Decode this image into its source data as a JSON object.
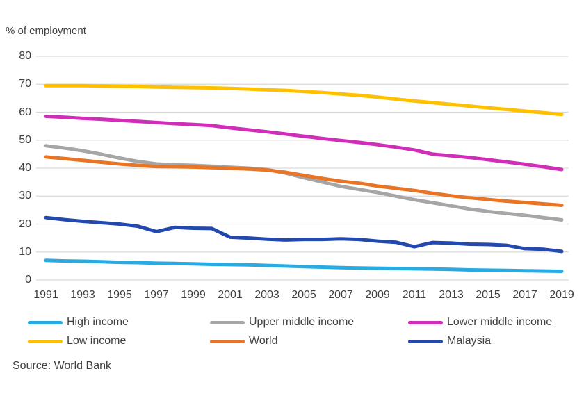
{
  "header": {
    "unit_label": "% of employment"
  },
  "source": {
    "text": "Source: World Bank"
  },
  "colors": {
    "gridline": "#d9d9d9",
    "axis_text": "#404040",
    "high_income": "#29abe2",
    "upper_middle_income": "#a6a6a6",
    "lower_middle_income": "#d02db8",
    "low_income": "#ffc000",
    "world": "#e87425",
    "malaysia": "#2348ae"
  },
  "chart_data": {
    "type": "line",
    "title": "",
    "ylabel": "% of employment",
    "xlabel": "",
    "ylim": [
      0,
      80
    ],
    "grid": true,
    "legend_position": "bottom",
    "yticks": [
      80,
      70,
      60,
      50,
      40,
      30,
      20,
      10,
      0
    ],
    "xticks": [
      1991,
      1993,
      1995,
      1997,
      1999,
      2001,
      2003,
      2005,
      2007,
      2009,
      2011,
      2013,
      2015,
      2017,
      2019
    ],
    "x": [
      1991,
      1992,
      1993,
      1994,
      1995,
      1996,
      1997,
      1998,
      1999,
      2000,
      2001,
      2002,
      2003,
      2004,
      2005,
      2006,
      2007,
      2008,
      2009,
      2010,
      2011,
      2012,
      2013,
      2014,
      2015,
      2016,
      2017,
      2018,
      2019
    ],
    "series": [
      {
        "name": "High income",
        "color": "#29abe2",
        "values": [
          7.0,
          6.8,
          6.7,
          6.5,
          6.3,
          6.2,
          6.0,
          5.9,
          5.8,
          5.6,
          5.5,
          5.4,
          5.2,
          5.0,
          4.8,
          4.6,
          4.4,
          4.3,
          4.2,
          4.1,
          4.0,
          3.9,
          3.8,
          3.6,
          3.5,
          3.4,
          3.3,
          3.2,
          3.1
        ]
      },
      {
        "name": "Upper middle income",
        "color": "#a6a6a6",
        "values": [
          48.0,
          47.2,
          46.2,
          45.0,
          43.6,
          42.4,
          41.5,
          41.2,
          41.0,
          40.7,
          40.3,
          40.0,
          39.5,
          38.2,
          36.6,
          35.0,
          33.5,
          32.4,
          31.3,
          30.0,
          28.7,
          27.6,
          26.5,
          25.4,
          24.5,
          23.8,
          23.1,
          22.3,
          21.5
        ]
      },
      {
        "name": "Lower middle income",
        "color": "#d02db8",
        "values": [
          58.5,
          58.2,
          57.8,
          57.5,
          57.1,
          56.7,
          56.3,
          55.9,
          55.6,
          55.2,
          54.4,
          53.7,
          53.0,
          52.2,
          51.4,
          50.6,
          49.9,
          49.2,
          48.4,
          47.5,
          46.5,
          45.0,
          44.4,
          43.8,
          43.0,
          42.2,
          41.4,
          40.5,
          39.5
        ]
      },
      {
        "name": "Low income",
        "color": "#ffc000",
        "values": [
          69.5,
          69.5,
          69.5,
          69.4,
          69.3,
          69.2,
          69.0,
          68.9,
          68.8,
          68.7,
          68.5,
          68.3,
          68.0,
          67.8,
          67.4,
          67.0,
          66.5,
          66.0,
          65.4,
          64.7,
          64.0,
          63.4,
          62.8,
          62.2,
          61.6,
          61.0,
          60.4,
          59.8,
          59.2
        ]
      },
      {
        "name": "World",
        "color": "#e87425",
        "values": [
          44.0,
          43.4,
          42.8,
          42.1,
          41.5,
          41.0,
          40.6,
          40.5,
          40.4,
          40.2,
          40.0,
          39.7,
          39.3,
          38.5,
          37.4,
          36.3,
          35.3,
          34.6,
          33.6,
          32.8,
          32.0,
          31.0,
          30.1,
          29.4,
          28.8,
          28.2,
          27.7,
          27.2,
          26.7
        ]
      },
      {
        "name": "Malaysia",
        "color": "#2348ae",
        "values": [
          22.3,
          21.6,
          21.0,
          20.5,
          20.0,
          19.2,
          17.3,
          18.8,
          18.5,
          18.4,
          15.3,
          15.0,
          14.6,
          14.3,
          14.5,
          14.5,
          14.7,
          14.5,
          13.9,
          13.5,
          11.9,
          13.4,
          13.2,
          12.8,
          12.7,
          12.4,
          11.2,
          11.0,
          10.2
        ]
      }
    ]
  }
}
